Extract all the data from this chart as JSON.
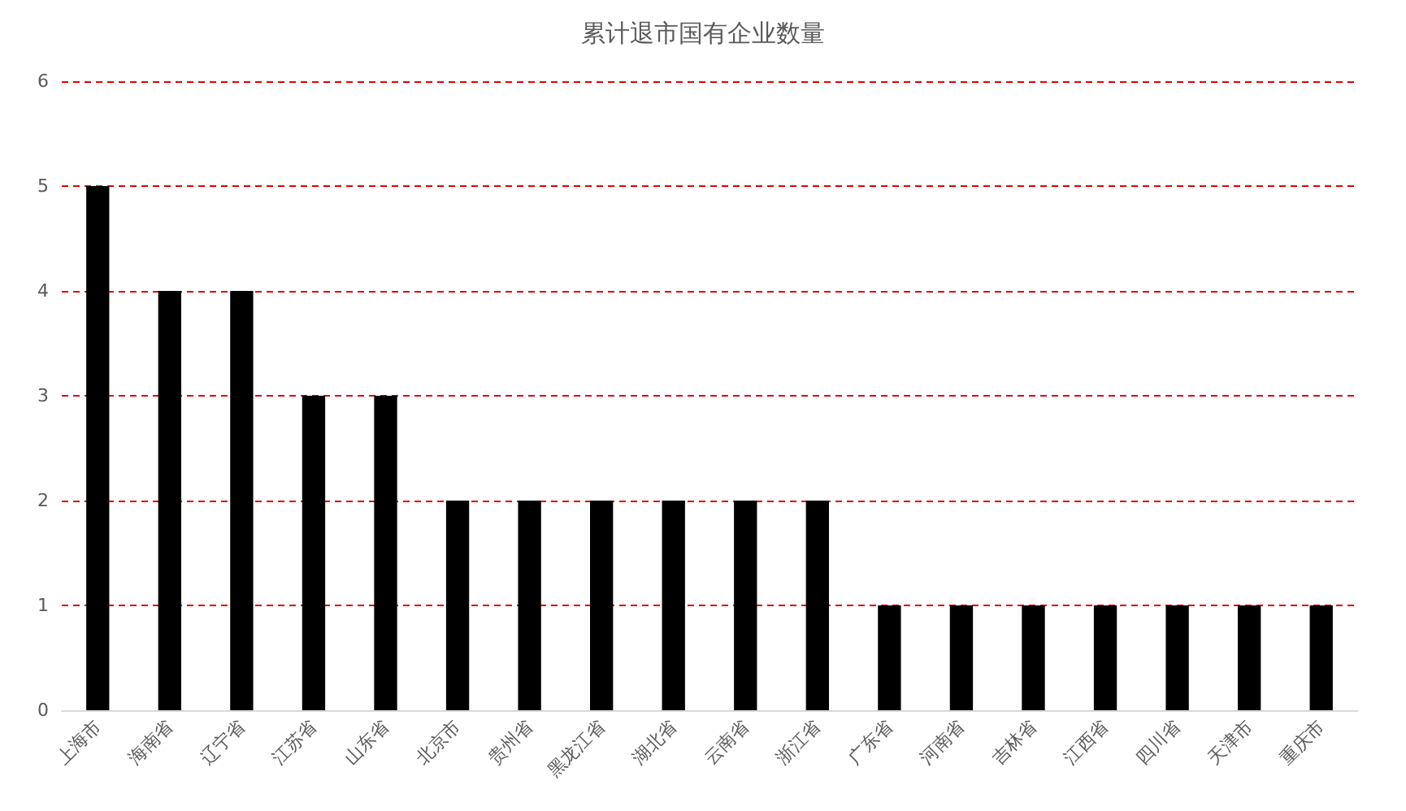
{
  "chart_data": {
    "type": "bar",
    "title": "累计退市国有企业数量",
    "categories": [
      "上海市",
      "海南省",
      "辽宁省",
      "江苏省",
      "山东省",
      "北京市",
      "贵州省",
      "黑龙江省",
      "湖北省",
      "云南省",
      "浙江省",
      "广东省",
      "河南省",
      "吉林省",
      "江西省",
      "四川省",
      "天津市",
      "重庆市"
    ],
    "values": [
      5,
      4,
      4,
      3,
      3,
      2,
      2,
      2,
      2,
      2,
      2,
      1,
      1,
      1,
      1,
      1,
      1,
      1
    ],
    "color": "#000000",
    "ylim": [
      0,
      6
    ],
    "yticks": [
      0,
      1,
      2,
      3,
      4,
      5,
      6
    ],
    "grid": "y"
  }
}
